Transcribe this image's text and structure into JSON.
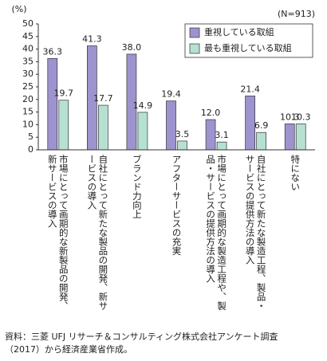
{
  "chart_data": {
    "type": "bar",
    "y_unit": "(%)",
    "annotation": "(N=913)",
    "categories": [
      "市場にとって画期的な新製品の開発、新サービスの導入",
      "自社にとって新たな製品の開発、新サービスの導入",
      "ブランド力向上",
      "アフターサービスの充実",
      "市場にとって画期的な製造工程や、製品・サービスの提供方法の導入",
      "自社にとって新たな製造工程、製品・サービスの提供方法の導入",
      "特にない"
    ],
    "series": [
      {
        "name": "重視している取組",
        "color": "#9d93cf",
        "values": [
          36.3,
          41.3,
          38.0,
          19.4,
          12.0,
          21.4,
          10.3
        ],
        "value_labels": [
          "36.3",
          "41.3",
          "38.0",
          "19.4",
          "12.0",
          "21.4",
          "10.3"
        ]
      },
      {
        "name": "最も重視している取組",
        "color": "#b5e0d2",
        "values": [
          19.7,
          17.7,
          14.9,
          3.5,
          3.1,
          6.9,
          10.3
        ],
        "value_labels": [
          "19.7",
          "17.7",
          "14.9",
          "3.5",
          "3.1",
          "6.9",
          "10.3"
        ]
      }
    ],
    "ylim": [
      0,
      50
    ],
    "yticks": [
      0,
      5,
      10,
      15,
      20,
      25,
      30,
      35,
      40,
      45,
      50
    ],
    "grid": false,
    "legend": "top-right",
    "source": "資料：三菱 UFJ リサーチ＆コンサルティング株式会社アンケート調査（2017）から経済産業省作成。"
  }
}
